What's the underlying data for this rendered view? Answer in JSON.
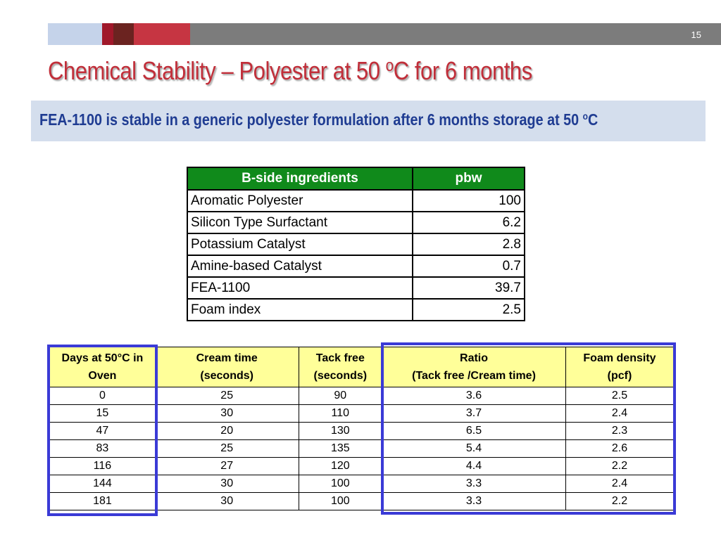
{
  "header": {
    "page_number": "15",
    "title_main": "Chemical Stability – Polyester at 50 ",
    "title_sup": "o",
    "title_end": "C for 6 months"
  },
  "banner": {
    "text_main": "FEA-1100 is stable in a generic polyester formulation after 6 months storage at 50 ",
    "text_sup": "o",
    "text_end": "C"
  },
  "bside_table": {
    "headers": [
      "B-side  ingredients",
      "pbw"
    ],
    "rows": [
      [
        "Aromatic Polyester",
        "100"
      ],
      [
        "Silicon Type Surfactant",
        "6.2"
      ],
      [
        "Potassium Catalyst",
        "2.8"
      ],
      [
        "Amine-based Catalyst",
        "0.7"
      ],
      [
        "FEA-1100",
        "39.7"
      ],
      [
        "Foam index",
        "2.5"
      ]
    ]
  },
  "data_table": {
    "headers": [
      [
        "Days at 50°C in",
        "Oven"
      ],
      [
        "Cream  time",
        "(seconds)"
      ],
      [
        "Tack free",
        "(seconds)"
      ],
      [
        "Ratio",
        "(Tack free /Cream time)"
      ],
      [
        "Foam density",
        "(pcf)"
      ]
    ],
    "rows": [
      [
        "0",
        "25",
        "90",
        "3.6",
        "2.5"
      ],
      [
        "15",
        "30",
        "110",
        "3.7",
        "2.4"
      ],
      [
        "47",
        "20",
        "130",
        "6.5",
        "2.3"
      ],
      [
        "83",
        "25",
        "135",
        "5.4",
        "2.6"
      ],
      [
        "116",
        "27",
        "120",
        "4.4",
        "2.2"
      ],
      [
        "144",
        "30",
        "100",
        "3.3",
        "2.4"
      ],
      [
        "181",
        "30",
        "100",
        "3.3",
        "2.2"
      ]
    ]
  },
  "colors": {
    "title": "#c12e39",
    "banner_text": "#1f3c92",
    "banner_bg": "#d4deed",
    "table_header_green": "#108a1b",
    "table_header_yellow": "#ffff99",
    "highlight_box": "#3a3ad6"
  }
}
